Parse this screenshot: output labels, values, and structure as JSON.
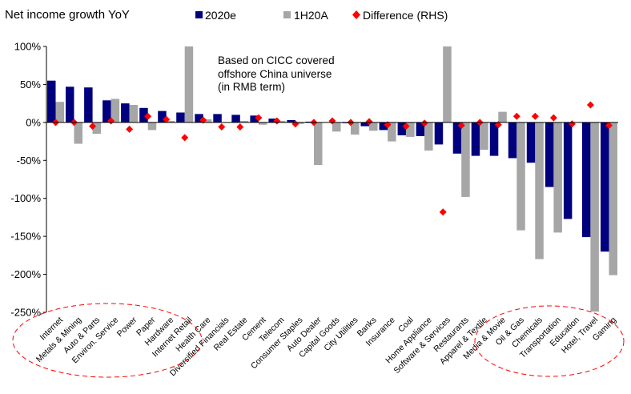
{
  "chart_data": {
    "type": "bar",
    "title": "Net income growth YoY",
    "note": [
      "Based on CICC covered",
      "offshore China universe",
      "(in RMB term)"
    ],
    "ylim": [
      -250,
      100
    ],
    "yticks": [
      "100%",
      "50%",
      "0%",
      "-50%",
      "-100%",
      "-150%",
      "-200%",
      "-250%"
    ],
    "ytick_values": [
      100,
      50,
      0,
      -50,
      -100,
      -150,
      -200,
      -250
    ],
    "categories": [
      "Internet",
      "Metals & Mining",
      "Auto & Parts",
      "Environ. Service",
      "Power",
      "Paper",
      "Hardware",
      "Internet Retail",
      "Health Care",
      "Diversified Financials",
      "Real Estate",
      "Cement",
      "Telecom",
      "Consumer Staples",
      "Auto Dealer",
      "Capital Goods",
      "City Utilities",
      "Banks",
      "Insurance",
      "Coal",
      "Home Appliance",
      "Software & Services",
      "Restaurants",
      "Apparel & Textile",
      "Media & Movie",
      "Oil & Gas",
      "Chemicals",
      "Transportation",
      "Education",
      "Hotel, Travel",
      "Gaming"
    ],
    "series": [
      {
        "name": "2020e",
        "color": "#00007f",
        "values": [
          55,
          47,
          46,
          29,
          25,
          19,
          15,
          13,
          11,
          11,
          10,
          9,
          5,
          3,
          1,
          0,
          -1,
          -5,
          -10,
          -17,
          -18,
          -29,
          -41,
          -44,
          -44,
          -47,
          -53,
          -85,
          -127,
          -151,
          -170
        ]
      },
      {
        "name": "1H20A",
        "color": "#a6a6a6",
        "values": [
          27,
          -28,
          -15,
          31,
          23,
          -10,
          2,
          100,
          4,
          0,
          2,
          -3,
          2,
          -2,
          -56,
          -12,
          -16,
          -11,
          -25,
          -19,
          -37,
          100,
          -98,
          -36,
          14,
          -142,
          -180,
          -145,
          0,
          -249,
          -201
        ]
      },
      {
        "name": "Difference (RHS)",
        "color": "#ff0000",
        "marker": "diamond",
        "values": [
          0,
          0,
          -5,
          2,
          -9,
          8,
          4,
          -20,
          3,
          -6,
          -6,
          6,
          2,
          -2,
          0,
          2,
          0,
          1,
          -3,
          -5,
          -1,
          -118,
          -4,
          0,
          -3,
          8,
          8,
          6,
          -2,
          23,
          -4
        ]
      }
    ],
    "legend": [
      "2020e",
      "1H20A",
      "Difference (RHS)"
    ],
    "legend_position": "top",
    "annotations": [
      "dashed ellipse around Internet..Internet Retail labels",
      "dashed ellipse around Media & Movie..Gaming labels"
    ]
  }
}
